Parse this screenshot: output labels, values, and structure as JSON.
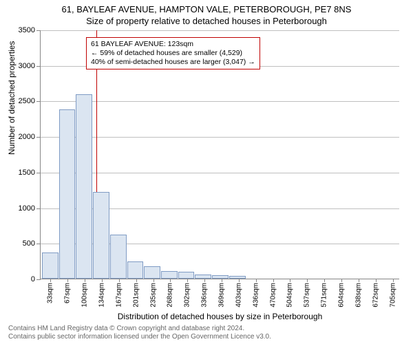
{
  "title_line1": "61, BAYLEAF AVENUE, HAMPTON VALE, PETERBOROUGH, PE7 8NS",
  "title_line2": "Size of property relative to detached houses in Peterborough",
  "yaxis_title": "Number of detached properties",
  "xaxis_title": "Distribution of detached houses by size in Peterborough",
  "ylim": [
    0,
    3500
  ],
  "ytick_step": 500,
  "yticks": [
    0,
    500,
    1000,
    1500,
    2000,
    2500,
    3000,
    3500
  ],
  "xlabels": [
    "33sqm",
    "67sqm",
    "100sqm",
    "134sqm",
    "167sqm",
    "201sqm",
    "235sqm",
    "268sqm",
    "302sqm",
    "336sqm",
    "369sqm",
    "403sqm",
    "436sqm",
    "470sqm",
    "504sqm",
    "537sqm",
    "571sqm",
    "604sqm",
    "638sqm",
    "672sqm",
    "705sqm"
  ],
  "values": [
    370,
    2380,
    2590,
    1220,
    620,
    240,
    170,
    110,
    100,
    60,
    50,
    40,
    0,
    0,
    0,
    0,
    0,
    0,
    0,
    0,
    0
  ],
  "bar_fill": "#dbe5f1",
  "bar_border": "#7f9bc4",
  "grid_color": "#bfbfbf",
  "axis_color": "#868686",
  "background_color": "#ffffff",
  "marker_value_sqm": 123,
  "marker_color": "#c00000",
  "annotation": {
    "line1": "61 BAYLEAF AVENUE: 123sqm",
    "line2": "← 59% of detached houses are smaller (4,529)",
    "line3": "40% of semi-detached houses are larger (3,047) →"
  },
  "footer_line1": "Contains HM Land Registry data © Crown copyright and database right 2024.",
  "footer_line2": "Contains public sector information licensed under the Open Government Licence v3.0."
}
